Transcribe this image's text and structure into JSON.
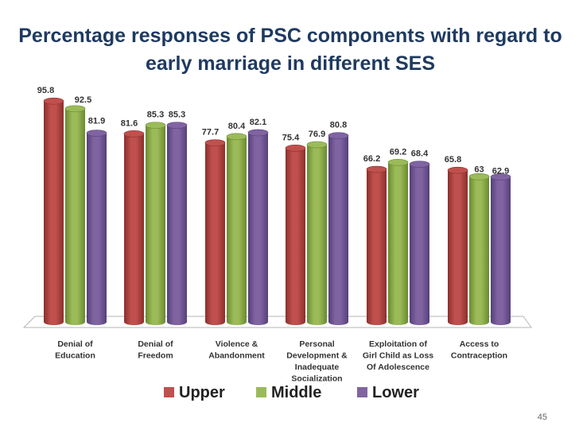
{
  "title_line1": "Percentage responses of PSC components with regard to",
  "title_line2": "early marriage in different SES",
  "page_number": "45",
  "colors": {
    "upper": "#c0504d",
    "upper_dark": "#8c2f2c",
    "middle": "#9bbb59",
    "middle_dark": "#6a8a30",
    "lower": "#8064a2",
    "lower_dark": "#55407a"
  },
  "chart_data": {
    "type": "bar",
    "title": "Percentage responses of PSC components with regard to early marriage in different SES",
    "categories": [
      [
        "Denial of",
        "Education"
      ],
      [
        "Denial of",
        "Freedom"
      ],
      [
        "Violence &",
        "Abandonment"
      ],
      [
        "Personal",
        "Development &",
        "Inadequate",
        "Socialization"
      ],
      [
        "Exploitation of",
        "Girl Child as Loss",
        "Of Adolescence"
      ],
      [
        "Access to",
        "Contraception"
      ]
    ],
    "series": [
      {
        "name": "Upper",
        "values": [
          95.8,
          81.6,
          77.7,
          75.4,
          66.2,
          65.8
        ],
        "labels": [
          "95.8",
          "81.6",
          "77.7",
          "75.4",
          "66.2",
          "65.8"
        ]
      },
      {
        "name": "Middle",
        "values": [
          92.5,
          85.3,
          80.4,
          76.9,
          69.2,
          63
        ],
        "labels": [
          "92.5",
          "85.3",
          "80.4",
          "76.9",
          "69.2",
          "63"
        ]
      },
      {
        "name": "Lower",
        "values": [
          81.9,
          85.3,
          82.1,
          80.8,
          68.4,
          62.9
        ],
        "labels": [
          "81.9",
          "85.3",
          "82.1",
          "80.8",
          "68.4",
          "62.9"
        ]
      }
    ],
    "ylim": [
      0,
      100
    ],
    "legend": "bottom"
  }
}
